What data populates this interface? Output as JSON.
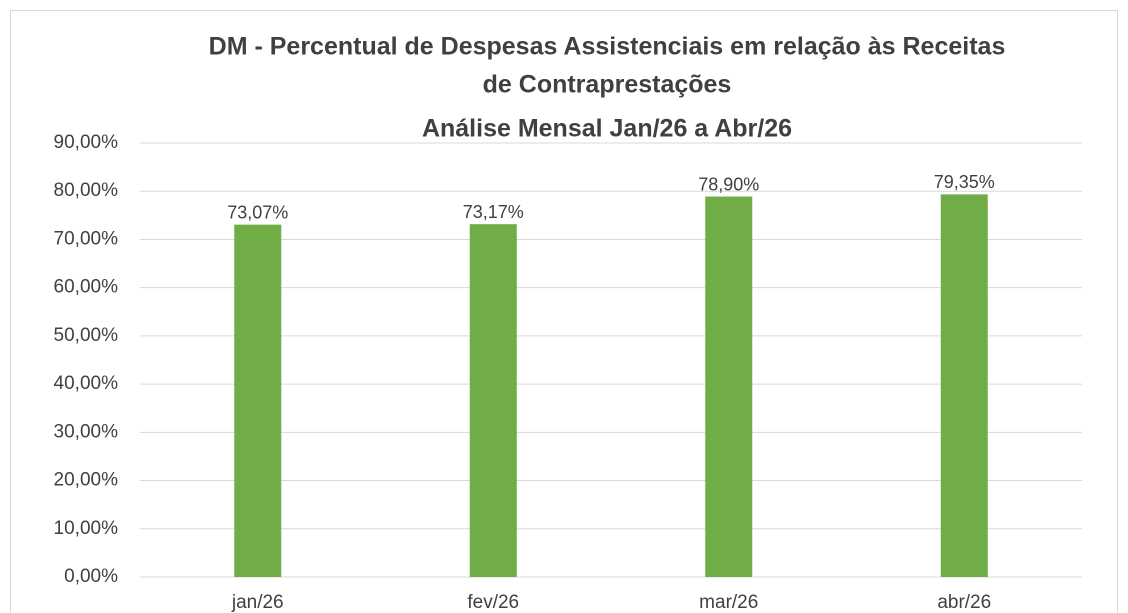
{
  "chart_data": {
    "type": "bar",
    "title": [
      "DM - Percentual de Despesas Assistenciais em relação às Receitas",
      "de Contraprestações"
    ],
    "subtitle": "Análise Mensal Jan/26 a Abr/26",
    "categories": [
      "jan/26",
      "fev/26",
      "mar/26",
      "abr/26"
    ],
    "values": [
      73.07,
      73.17,
      78.9,
      79.35
    ],
    "value_labels": [
      "73,07%",
      "73,17%",
      "78,90%",
      "79,35%"
    ],
    "color": "#70ad47",
    "ylim": [
      0,
      90
    ],
    "yticks": [
      {
        "value": 0,
        "label": "0,00%"
      },
      {
        "value": 10,
        "label": "10,00%"
      },
      {
        "value": 20,
        "label": "20,00%"
      },
      {
        "value": 30,
        "label": "30,00%"
      },
      {
        "value": 40,
        "label": "40,00%"
      },
      {
        "value": 50,
        "label": "50,00%"
      },
      {
        "value": 60,
        "label": "60,00%"
      },
      {
        "value": 70,
        "label": "70,00%"
      },
      {
        "value": 80,
        "label": "80,00%"
      },
      {
        "value": 90,
        "label": "90,00%"
      }
    ],
    "grid": true
  }
}
